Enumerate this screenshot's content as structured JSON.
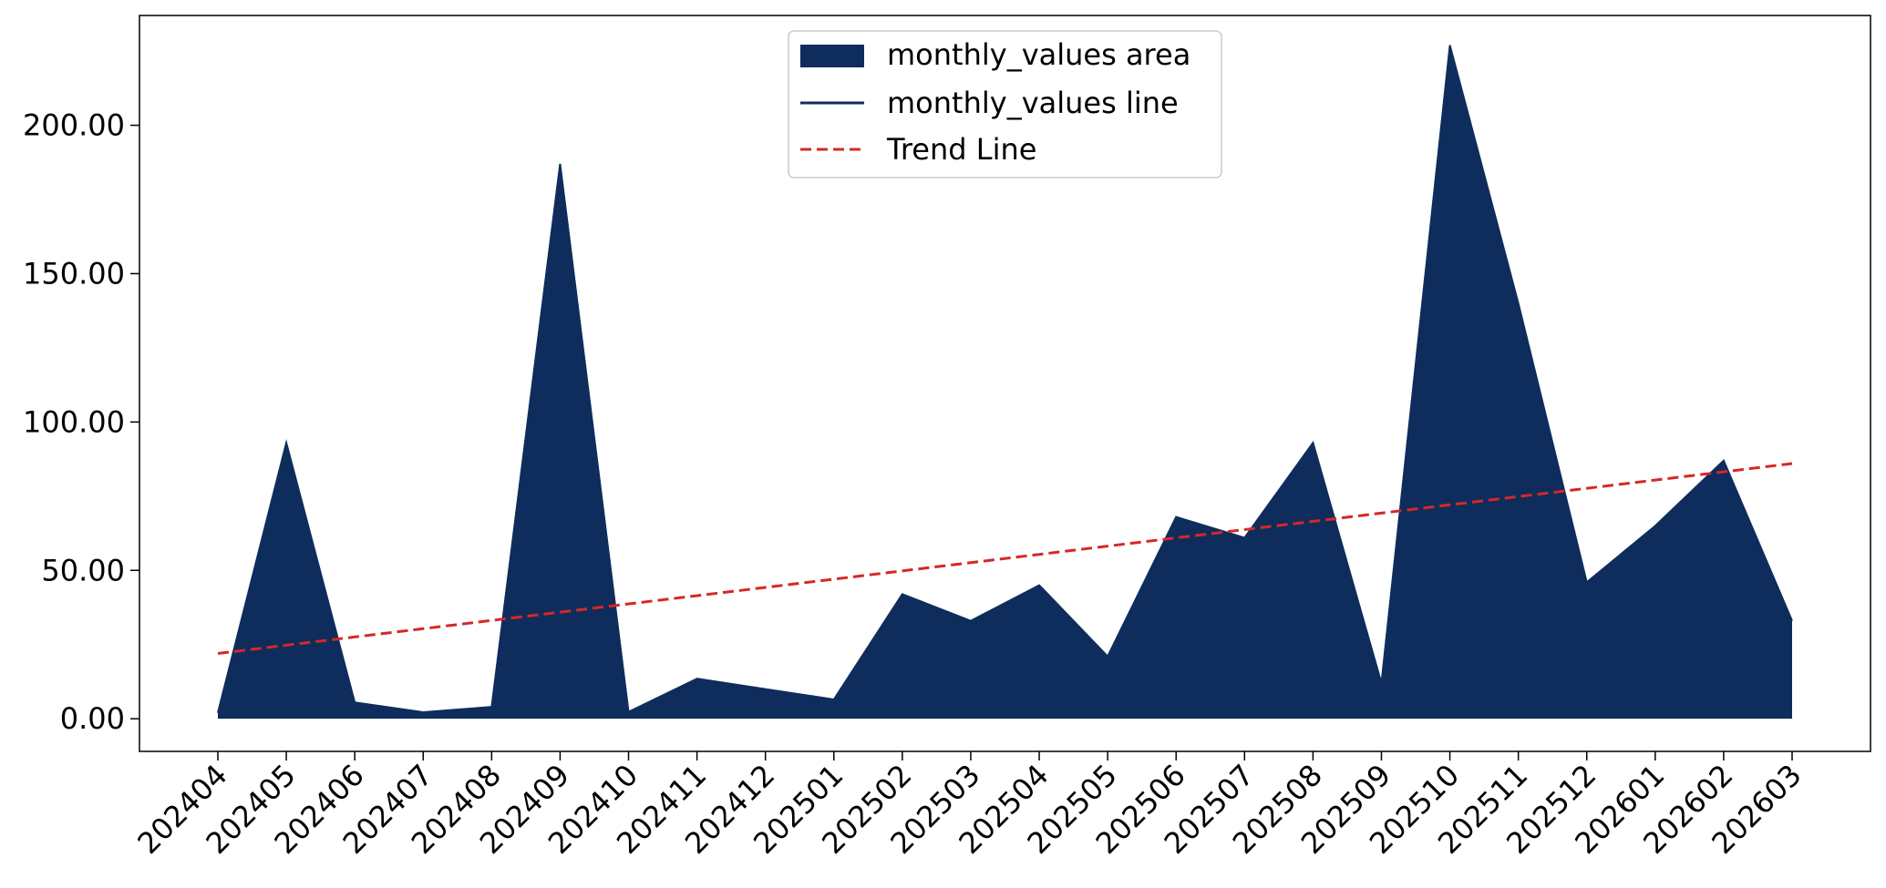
{
  "chart_data": {
    "type": "area",
    "categories": [
      "202404",
      "202405",
      "202406",
      "202407",
      "202408",
      "202409",
      "202410",
      "202411",
      "202412",
      "202501",
      "202502",
      "202503",
      "202504",
      "202505",
      "202506",
      "202507",
      "202508",
      "202509",
      "202510",
      "202511",
      "202512",
      "202601",
      "202602",
      "202603"
    ],
    "series": [
      {
        "name": "monthly_values area",
        "values": [
          2.0,
          93.0,
          5.5,
          2.2,
          4.0,
          187.0,
          2.3,
          13.5,
          10.0,
          6.5,
          42.0,
          33.0,
          45.0,
          21.0,
          68.0,
          61.0,
          93.0,
          12.0,
          227.0,
          140.0,
          46.0,
          65.0,
          87.0,
          33.0
        ]
      }
    ],
    "line_series_name": "monthly_values line",
    "trend": {
      "name": "Trend Line",
      "start": 22.0,
      "end": 86.0
    },
    "yticks": [
      "0.00",
      "50.00",
      "100.00",
      "150.00",
      "200.00"
    ],
    "ytick_values": [
      0,
      50,
      100,
      150,
      200
    ],
    "ylim": [
      -11,
      237
    ],
    "legend_position": "top-center",
    "grid": false,
    "colors": {
      "area": "#0e2d5c",
      "line": "#0e2d5c",
      "trend": "#d62728"
    }
  }
}
